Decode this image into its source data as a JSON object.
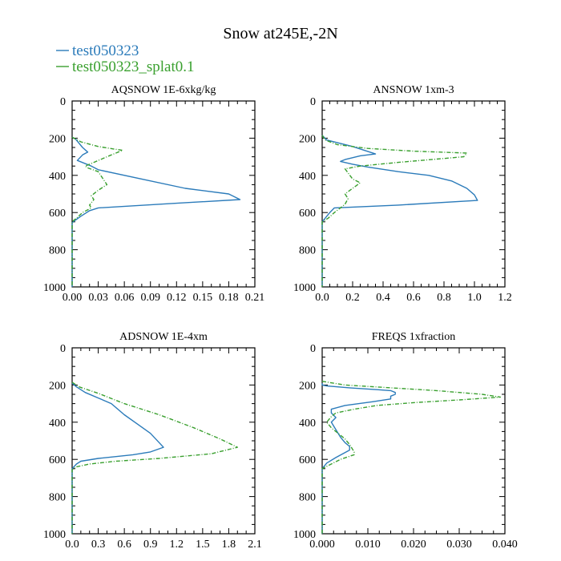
{
  "figure_title": "Snow at245E,-2N",
  "legend": [
    {
      "label": "test050323",
      "color": "#2b7bba",
      "dash": "solid"
    },
    {
      "label": "test050323_splat0.1",
      "color": "#3aa02f",
      "dash": "dashed"
    }
  ],
  "chart_data": [
    {
      "type": "line",
      "title": "AQSNOW  1E-6xkg/kg",
      "xlim": [
        0,
        0.21
      ],
      "ylim": [
        0,
        1000
      ],
      "y_inverted": true,
      "xticks": [
        0,
        0.03,
        0.06,
        0.09,
        0.12,
        0.15,
        0.18,
        0.21
      ],
      "xtick_labels": [
        "0.00",
        "0.03",
        "0.06",
        "0.09",
        "0.12",
        "0.15",
        "0.18",
        "0.21"
      ],
      "xminor": 3,
      "yticks": [
        0,
        200,
        400,
        600,
        800,
        1000
      ],
      "ytick_labels": [
        "0",
        "200",
        "400",
        "600",
        "800",
        "1000"
      ],
      "yminor": 4,
      "series": [
        {
          "name": "test050323",
          "points": [
            [
              0,
              195
            ],
            [
              0.004,
              205
            ],
            [
              0.012,
              250
            ],
            [
              0.018,
              275
            ],
            [
              0.012,
              290
            ],
            [
              0.006,
              320
            ],
            [
              0.014,
              335
            ],
            [
              0.022,
              350
            ],
            [
              0.03,
              370
            ],
            [
              0.08,
              420
            ],
            [
              0.13,
              470
            ],
            [
              0.18,
              500
            ],
            [
              0.193,
              530
            ],
            [
              0.12,
              550
            ],
            [
              0.03,
              575
            ],
            [
              0.02,
              590
            ],
            [
              0.01,
              620
            ],
            [
              0.004,
              640
            ],
            [
              0,
              655
            ],
            [
              0,
              1000
            ]
          ]
        },
        {
          "name": "test050323_splat0.1",
          "points": [
            [
              0,
              195
            ],
            [
              0.01,
              220
            ],
            [
              0.03,
              245
            ],
            [
              0.05,
              260
            ],
            [
              0.058,
              265
            ],
            [
              0.045,
              290
            ],
            [
              0.025,
              330
            ],
            [
              0.015,
              350
            ],
            [
              0.018,
              360
            ],
            [
              0.03,
              380
            ],
            [
              0.04,
              450
            ],
            [
              0.03,
              480
            ],
            [
              0.022,
              510
            ],
            [
              0.025,
              530
            ],
            [
              0.02,
              560
            ],
            [
              0.022,
              575
            ],
            [
              0.012,
              600
            ],
            [
              0.005,
              630
            ],
            [
              0,
              650
            ],
            [
              0,
              1000
            ]
          ]
        }
      ]
    },
    {
      "type": "line",
      "title": "ANSNOW  1xm-3",
      "xlim": [
        0,
        1.2
      ],
      "ylim": [
        0,
        1000
      ],
      "y_inverted": true,
      "xticks": [
        0,
        0.2,
        0.4,
        0.6,
        0.8,
        1.0,
        1.2
      ],
      "xtick_labels": [
        "0.0",
        "0.2",
        "0.4",
        "0.6",
        "0.8",
        "1.0",
        "1.2"
      ],
      "xminor": 4,
      "yticks": [
        0,
        200,
        400,
        600,
        800,
        1000
      ],
      "ytick_labels": [
        "0",
        "200",
        "400",
        "600",
        "800",
        "1000"
      ],
      "yminor": 4,
      "series": [
        {
          "name": "test050323",
          "points": [
            [
              0,
              185
            ],
            [
              0.03,
              210
            ],
            [
              0.2,
              245
            ],
            [
              0.35,
              285
            ],
            [
              0.25,
              295
            ],
            [
              0.15,
              315
            ],
            [
              0.12,
              325
            ],
            [
              0.2,
              340
            ],
            [
              0.3,
              355
            ],
            [
              0.5,
              380
            ],
            [
              0.7,
              400
            ],
            [
              0.85,
              430
            ],
            [
              0.95,
              470
            ],
            [
              1.0,
              505
            ],
            [
              1.02,
              535
            ],
            [
              0.5,
              560
            ],
            [
              0.08,
              575
            ],
            [
              0.05,
              600
            ],
            [
              0.02,
              630
            ],
            [
              0,
              650
            ],
            [
              0,
              1000
            ]
          ]
        },
        {
          "name": "test050323_splat0.1",
          "points": [
            [
              0,
              185
            ],
            [
              0.02,
              210
            ],
            [
              0.1,
              235
            ],
            [
              0.3,
              255
            ],
            [
              0.6,
              270
            ],
            [
              0.95,
              280
            ],
            [
              0.93,
              300
            ],
            [
              0.5,
              330
            ],
            [
              0.25,
              350
            ],
            [
              0.15,
              365
            ],
            [
              0.2,
              420
            ],
            [
              0.25,
              440
            ],
            [
              0.2,
              470
            ],
            [
              0.15,
              500
            ],
            [
              0.17,
              525
            ],
            [
              0.15,
              555
            ],
            [
              0.12,
              575
            ],
            [
              0.08,
              600
            ],
            [
              0.04,
              630
            ],
            [
              0,
              650
            ],
            [
              0,
              1000
            ]
          ]
        }
      ]
    },
    {
      "type": "line",
      "title": "ADSNOW  1E-4xm",
      "xlim": [
        0,
        2.1
      ],
      "ylim": [
        0,
        1000
      ],
      "y_inverted": true,
      "xticks": [
        0,
        0.3,
        0.6,
        0.9,
        1.2,
        1.5,
        1.8,
        2.1
      ],
      "xtick_labels": [
        "0.0",
        "0.3",
        "0.6",
        "0.9",
        "1.2",
        "1.5",
        "1.8",
        "2.1"
      ],
      "xminor": 3,
      "yticks": [
        0,
        200,
        400,
        600,
        800,
        1000
      ],
      "ytick_labels": [
        "0",
        "200",
        "400",
        "600",
        "800",
        "1000"
      ],
      "yminor": 4,
      "series": [
        {
          "name": "test050323",
          "points": [
            [
              0,
              190
            ],
            [
              0.05,
              210
            ],
            [
              0.15,
              240
            ],
            [
              0.3,
              270
            ],
            [
              0.45,
              300
            ],
            [
              0.6,
              360
            ],
            [
              0.75,
              410
            ],
            [
              0.9,
              460
            ],
            [
              1.0,
              510
            ],
            [
              1.05,
              535
            ],
            [
              0.9,
              560
            ],
            [
              0.7,
              575
            ],
            [
              0.3,
              595
            ],
            [
              0.1,
              610
            ],
            [
              0.05,
              625
            ],
            [
              0,
              650
            ],
            [
              0,
              1000
            ]
          ]
        },
        {
          "name": "test050323_splat0.1",
          "points": [
            [
              0,
              185
            ],
            [
              0.08,
              210
            ],
            [
              0.3,
              245
            ],
            [
              0.6,
              300
            ],
            [
              1.0,
              360
            ],
            [
              1.4,
              430
            ],
            [
              1.7,
              490
            ],
            [
              1.9,
              535
            ],
            [
              1.6,
              570
            ],
            [
              1.0,
              595
            ],
            [
              0.5,
              610
            ],
            [
              0.2,
              625
            ],
            [
              0.05,
              640
            ],
            [
              0,
              655
            ],
            [
              0,
              1000
            ]
          ]
        }
      ]
    },
    {
      "type": "line",
      "title": "FREQS  1xfraction",
      "xlim": [
        0,
        0.04
      ],
      "ylim": [
        0,
        1000
      ],
      "y_inverted": true,
      "xticks": [
        0,
        0.01,
        0.02,
        0.03,
        0.04
      ],
      "xtick_labels": [
        "0.000",
        "0.010",
        "0.020",
        "0.030",
        "0.040"
      ],
      "xminor": 4,
      "yticks": [
        0,
        200,
        400,
        600,
        800,
        1000
      ],
      "ytick_labels": [
        "0",
        "200",
        "400",
        "600",
        "800",
        "1000"
      ],
      "yminor": 4,
      "series": [
        {
          "name": "test050323",
          "points": [
            [
              0,
              190
            ],
            [
              0,
              200
            ],
            [
              0.001,
              205
            ],
            [
              0.006,
              215
            ],
            [
              0.012,
              225
            ],
            [
              0.015,
              230
            ],
            [
              0.016,
              240
            ],
            [
              0.016,
              250
            ],
            [
              0.015,
              260
            ],
            [
              0.015,
              275
            ],
            [
              0.011,
              290
            ],
            [
              0.005,
              310
            ],
            [
              0.002,
              330
            ],
            [
              0.002,
              350
            ],
            [
              0.003,
              375
            ],
            [
              0.002,
              400
            ],
            [
              0.003,
              440
            ],
            [
              0.004,
              480
            ],
            [
              0.005,
              510
            ],
            [
              0.006,
              530
            ],
            [
              0.006,
              550
            ],
            [
              0.003,
              590
            ],
            [
              0.001,
              620
            ],
            [
              0,
              650
            ],
            [
              0,
              1000
            ]
          ]
        },
        {
          "name": "test050323_splat0.1",
          "points": [
            [
              0,
              180
            ],
            [
              0.005,
              200
            ],
            [
              0.015,
              215
            ],
            [
              0.025,
              230
            ],
            [
              0.035,
              250
            ],
            [
              0.039,
              265
            ],
            [
              0.03,
              280
            ],
            [
              0.02,
              295
            ],
            [
              0.012,
              310
            ],
            [
              0.007,
              330
            ],
            [
              0.003,
              350
            ],
            [
              0.002,
              370
            ],
            [
              0.001,
              400
            ],
            [
              0.002,
              430
            ],
            [
              0.003,
              450
            ],
            [
              0.005,
              490
            ],
            [
              0.006,
              520
            ],
            [
              0.007,
              560
            ],
            [
              0.007,
              575
            ],
            [
              0.004,
              600
            ],
            [
              0.002,
              625
            ],
            [
              0,
              650
            ],
            [
              0,
              1000
            ]
          ]
        }
      ]
    }
  ]
}
